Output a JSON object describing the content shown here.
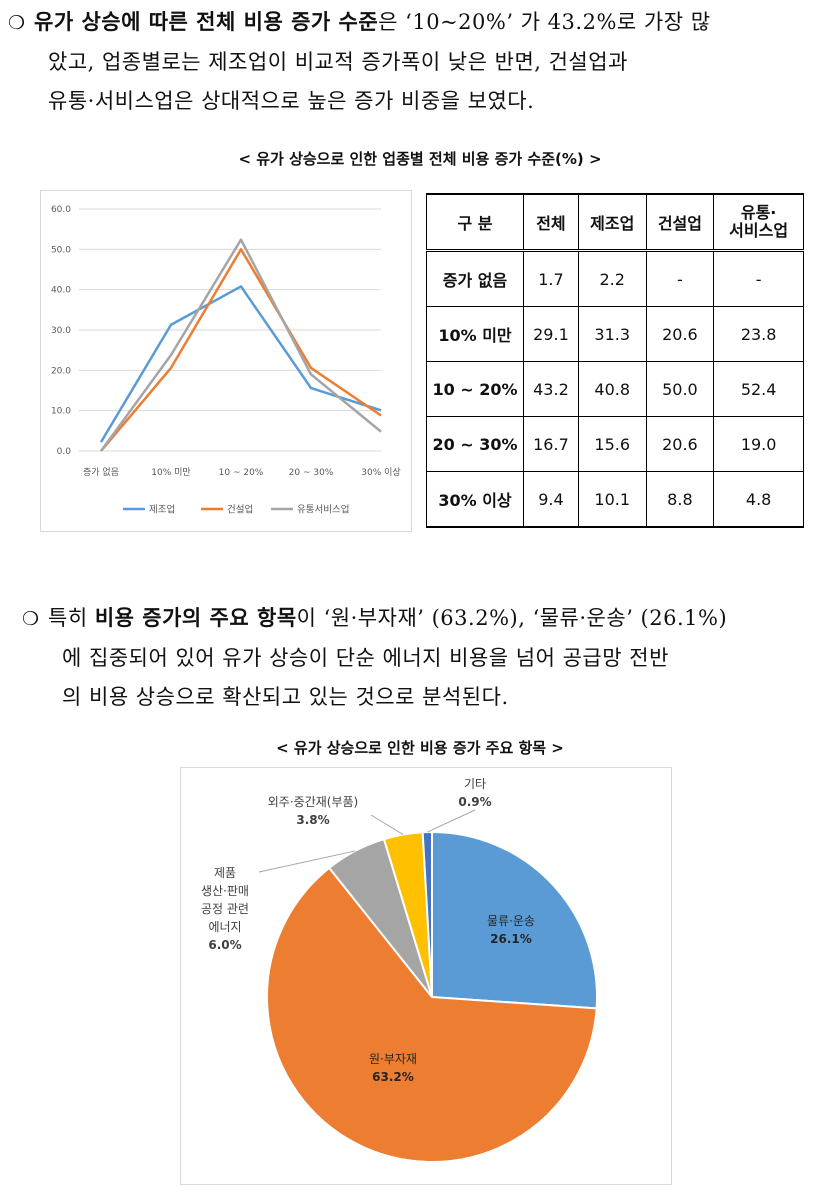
{
  "paragraph1": {
    "bullet": "❍",
    "bold": "유가 상승에 따른 전체 비용 증가 수준",
    "line1_rest": "은 ‘10~20%’ 가 43.2%로 가장 많",
    "line2": "았고, 업종별로는 제조업이 비교적 증가폭이 낮은 반면, 건설업과",
    "line3": "유통·서비스업은 상대적으로 높은 증가 비중을 보였다."
  },
  "caption1": "< 유가 상승으로 인한 업종별 전체 비용 증가 수준(%) >",
  "line_chart": {
    "colors": {
      "제조업": "#5b9bd5",
      "건설업": "#ed7d31",
      "유통서비스업": "#a5a5a5"
    }
  },
  "chart_data": [
    {
      "type": "line",
      "categories": [
        "증가 없음",
        "10% 미만",
        "10 ~ 20%",
        "20 ~ 30%",
        "30% 이상"
      ],
      "series": [
        {
          "name": "제조업",
          "values": [
            2.2,
            31.3,
            40.8,
            15.6,
            10.1
          ]
        },
        {
          "name": "건설업",
          "values": [
            0.0,
            20.6,
            50.0,
            20.6,
            8.8
          ]
        },
        {
          "name": "유통서비스업",
          "values": [
            0.0,
            23.8,
            52.4,
            19.0,
            4.8
          ]
        }
      ],
      "y_ticks": [
        "0.0",
        "10.0",
        "20.0",
        "30.0",
        "40.0",
        "50.0",
        "60.0"
      ],
      "ylim": [
        0,
        60
      ],
      "grid": true,
      "legend": "bottom"
    },
    {
      "type": "pie",
      "slices": [
        {
          "label": "물류·운송",
          "value": 26.1,
          "display": "26.1%",
          "color": "#5b9bd5"
        },
        {
          "label": "원·부자재",
          "value": 63.2,
          "display": "63.2%",
          "color": "#ed7d31"
        },
        {
          "label": "제품 생산·판매 공정 관련 에너지",
          "value": 6.0,
          "display": "6.0%",
          "color": "#a5a5a5"
        },
        {
          "label": "외주·중간재(부품)",
          "value": 3.8,
          "display": "3.8%",
          "color": "#ffc000"
        },
        {
          "label": "기타",
          "value": 0.9,
          "display": "0.9%",
          "color": "#4472c4"
        }
      ]
    }
  ],
  "table": {
    "headers": [
      "구    분",
      "전체",
      "제조업",
      "건설업",
      "유통·\n서비스업"
    ],
    "rows": [
      [
        "증가 없음",
        "1.7",
        "2.2",
        "-",
        "-"
      ],
      [
        "10% 미만",
        "29.1",
        "31.3",
        "20.6",
        "23.8"
      ],
      [
        "10 ~ 20%",
        "43.2",
        "40.8",
        "50.0",
        "52.4"
      ],
      [
        "20 ~ 30%",
        "16.7",
        "15.6",
        "20.6",
        "19.0"
      ],
      [
        "30% 이상",
        "9.4",
        "10.1",
        "8.8",
        "4.8"
      ]
    ]
  },
  "paragraph2": {
    "bullet": "❍",
    "pre": "특히 ",
    "bold": "비용 증가의 주요 항목",
    "line1_rest": "이 ‘원·부자재’ (63.2%), ‘물류·운송’ (26.1%)",
    "line2": "에 집중되어 있어 유가 상승이 단순 에너지 비용을 넘어 공급망 전반",
    "line3": "의 비용 상승으로 확산되고 있는 것으로 분석된다."
  },
  "caption2": "< 유가 상승으로 인한 비용 증가 주요 항목 >"
}
